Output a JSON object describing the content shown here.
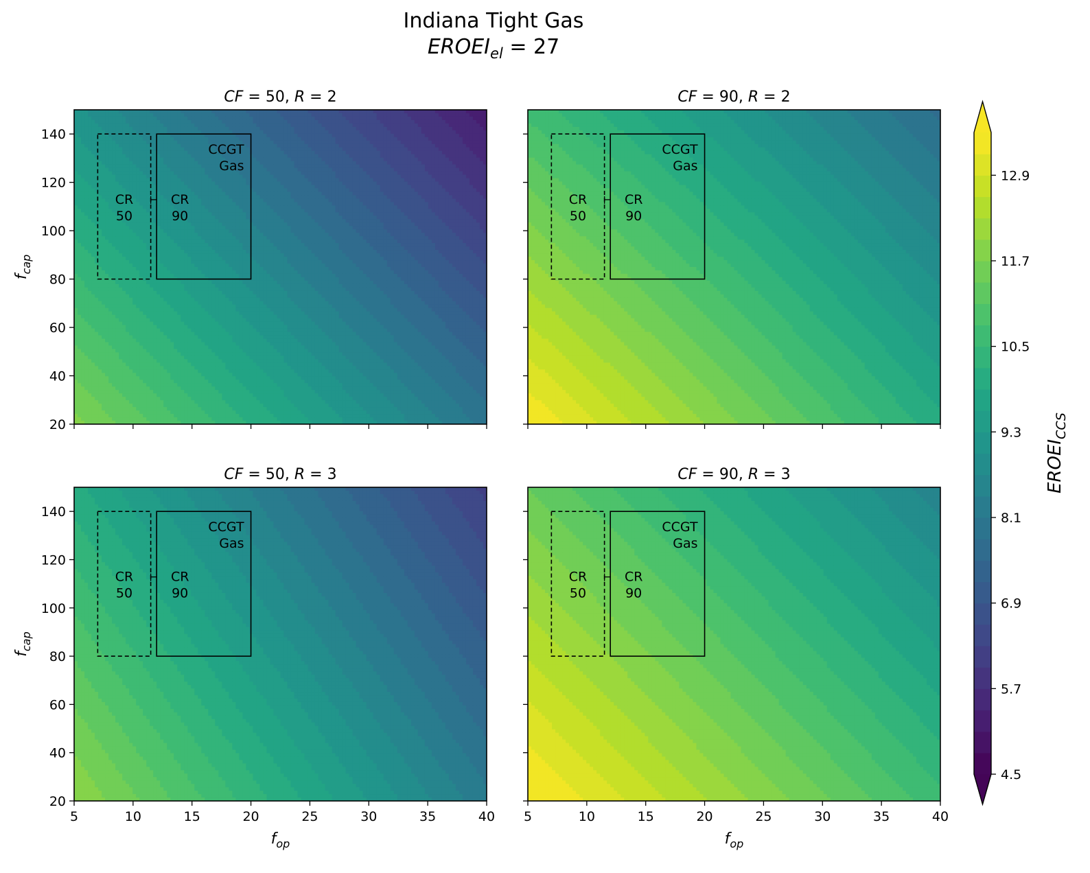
{
  "chart_data": {
    "type": "heatmap",
    "figure_title": "Indiana Tight Gas",
    "subtitle": {
      "base": "EROEI",
      "sub": "el",
      "rest": " = 27"
    },
    "xlabel": {
      "base": "f",
      "sub": "op"
    },
    "ylabel": {
      "base": "f",
      "sub": "cap"
    },
    "xlim": [
      5,
      40
    ],
    "ylim": [
      20,
      150
    ],
    "x_ticks": [
      5,
      10,
      15,
      20,
      25,
      30,
      35,
      40
    ],
    "y_ticks": [
      20,
      40,
      60,
      80,
      100,
      120,
      140
    ],
    "colormap": "viridis",
    "contour_levels": {
      "min": 4.5,
      "max": 13.5,
      "step": 0.3
    },
    "colorbar": {
      "label": {
        "base": "EROEI",
        "sub": "CCS"
      },
      "ticks": [
        "4.5",
        "5.7",
        "6.9",
        "8.1",
        "9.3",
        "10.5",
        "11.7",
        "12.9"
      ],
      "extend": "both"
    },
    "annotations": {
      "cr50": {
        "lines": [
          "CR",
          "50"
        ],
        "x": [
          7,
          11.5
        ],
        "y": [
          80,
          140
        ],
        "style": "dashed"
      },
      "cr90": {
        "lines": [
          "CR",
          "90"
        ],
        "x": [
          12,
          20
        ],
        "y": [
          80,
          140
        ],
        "style": "solid"
      },
      "ccgt": {
        "lines": [
          "CCGT",
          "Gas"
        ]
      }
    },
    "panels": [
      {
        "title": {
          "cf": "50",
          "r": "2"
        },
        "corner_values": {
          "x5_y20": 11.8,
          "x40_y20": 8.0,
          "x5_y150": 9.1,
          "x40_y150": 5.2
        }
      },
      {
        "title": {
          "cf": "90",
          "r": "2"
        },
        "corner_values": {
          "x5_y20": 13.5,
          "x40_y20": 10.0,
          "x5_y150": 10.7,
          "x40_y150": 7.7
        }
      },
      {
        "title": {
          "cf": "50",
          "r": "3"
        },
        "corner_values": {
          "x5_y20": 12.0,
          "x40_y20": 8.2,
          "x5_y150": 10.0,
          "x40_y150": 6.2
        }
      },
      {
        "title": {
          "cf": "90",
          "r": "3"
        },
        "corner_values": {
          "x5_y20": 13.6,
          "x40_y20": 10.6,
          "x5_y150": 11.4,
          "x40_y150": 8.5
        }
      }
    ]
  }
}
